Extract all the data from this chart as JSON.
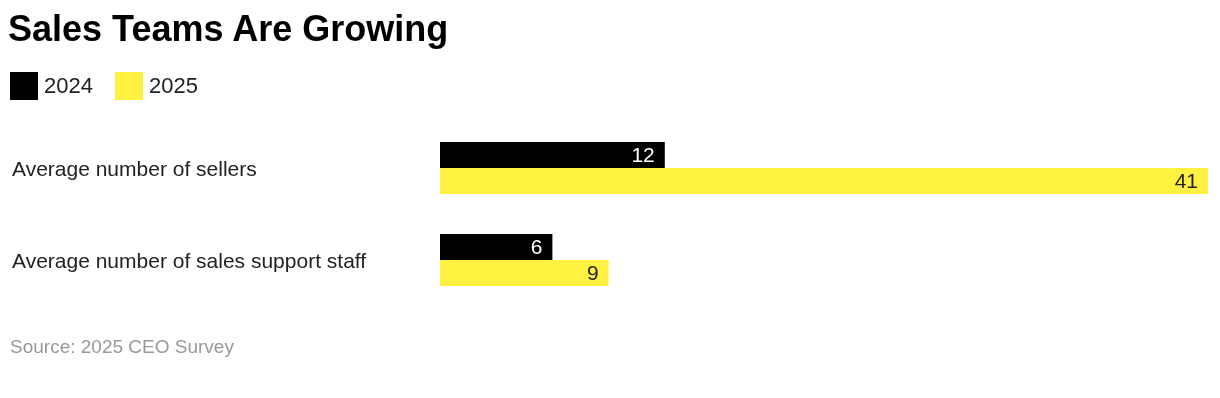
{
  "chart_data": {
    "type": "bar",
    "orientation": "horizontal",
    "title": "Sales Teams Are Growing",
    "categories": [
      "Average number of sellers",
      "Average number of sales support staff"
    ],
    "series": [
      {
        "name": "2024",
        "color": "#000000",
        "values": [
          12,
          6
        ]
      },
      {
        "name": "2025",
        "color": "#fff140",
        "values": [
          41,
          9
        ]
      }
    ],
    "data_labels": true,
    "legend": "top left",
    "annotations": [
      "Source: 2025 CEO Survey"
    ]
  }
}
